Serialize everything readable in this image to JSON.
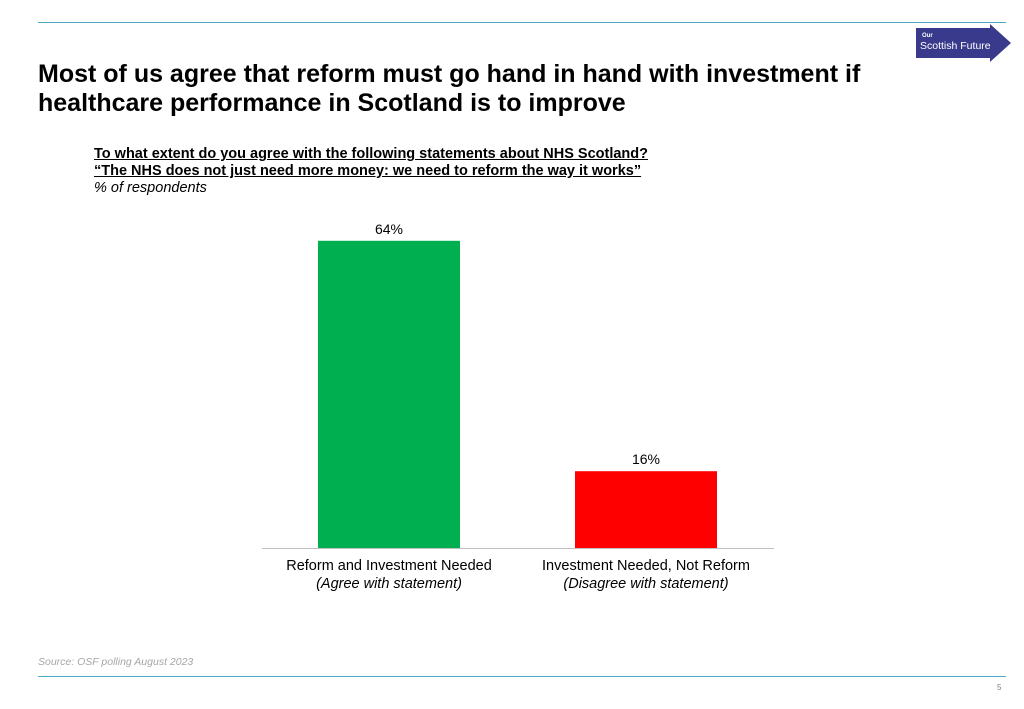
{
  "logo": {
    "small_text": "Our",
    "main_text": "Scottish Future",
    "color": "#3a3a8c"
  },
  "title": {
    "line1": "Most of us agree that reform must go hand in hand with investment if",
    "line2": "healthcare performance in Scotland is to improve"
  },
  "question": {
    "line1": "To what extent do you agree with the following statements about NHS Scotland?",
    "line2": "“The NHS does not just need more money: we need to reform the way it works”",
    "unit": "% of respondents"
  },
  "chart_data": {
    "type": "bar",
    "categories": [
      "Reform and Investment Needed",
      "Investment Needed, Not Reform"
    ],
    "sublabels": [
      "(Agree with statement)",
      "(Disagree with statement)"
    ],
    "values": [
      64,
      16
    ],
    "value_labels": [
      "64%",
      "16%"
    ],
    "colors": [
      "#00b050",
      "#ff0000"
    ],
    "ylim": [
      0,
      70
    ],
    "grid": false,
    "legend": "none"
  },
  "source": "Source: OSF polling August 2023",
  "page_number": "5"
}
